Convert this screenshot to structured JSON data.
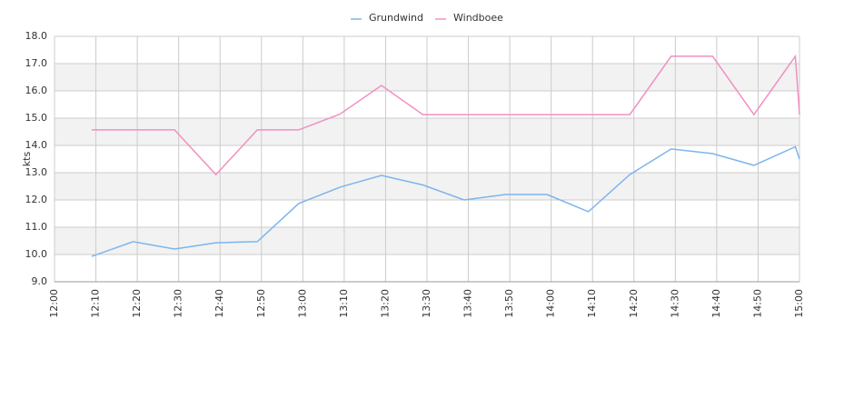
{
  "chart_data": {
    "type": "line",
    "y_label": "kts",
    "x": [
      "12:09",
      "12:19",
      "12:29",
      "12:39",
      "12:49",
      "12:59",
      "13:09",
      "13:19",
      "13:29",
      "13:39",
      "13:49",
      "13:59",
      "14:09",
      "14:19",
      "14:29",
      "14:39",
      "14:49",
      "14:59",
      "15:00"
    ],
    "series": [
      {
        "name": "Grundwind",
        "color": "#7cb5ec",
        "values": [
          9.93,
          10.47,
          10.2,
          10.43,
          10.47,
          11.87,
          12.47,
          12.9,
          12.55,
          12.0,
          12.2,
          12.2,
          11.57,
          12.93,
          13.87,
          13.7,
          13.27,
          13.95,
          13.5
        ]
      },
      {
        "name": "Windboee",
        "color": "#f28fc2",
        "values": [
          14.57,
          14.57,
          14.57,
          12.93,
          14.57,
          14.57,
          15.15,
          16.2,
          15.13,
          15.13,
          15.13,
          15.13,
          15.13,
          15.13,
          17.27,
          17.27,
          15.13,
          17.27,
          15.13
        ]
      }
    ],
    "xlim": [
      "12:00",
      "15:00"
    ],
    "xticks": [
      "12:00",
      "12:10",
      "12:20",
      "12:30",
      "12:40",
      "12:50",
      "13:00",
      "13:10",
      "13:20",
      "13:30",
      "13:40",
      "13:50",
      "14:00",
      "14:10",
      "14:20",
      "14:30",
      "14:40",
      "14:50",
      "15:00"
    ],
    "ylim": [
      9,
      18
    ],
    "yticks": [
      {
        "value": 9,
        "label": "9.0"
      },
      {
        "value": 10,
        "label": "10.0"
      },
      {
        "value": 11,
        "label": "11.0"
      },
      {
        "value": 12,
        "label": "12.0"
      },
      {
        "value": 13,
        "label": "13.0"
      },
      {
        "value": 14,
        "label": "14.0"
      },
      {
        "value": 15,
        "label": "15.0"
      },
      {
        "value": 16,
        "label": "16.0"
      },
      {
        "value": 17,
        "label": "17.0"
      },
      {
        "value": 18,
        "label": "18.0"
      }
    ],
    "grid": true,
    "legend": "top"
  }
}
